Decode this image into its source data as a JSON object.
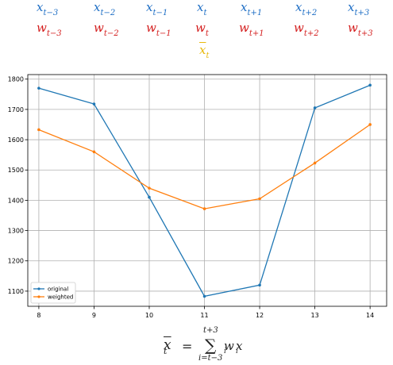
{
  "symbols": {
    "x": [
      {
        "base": "x",
        "sub": "t−3"
      },
      {
        "base": "x",
        "sub": "t−2"
      },
      {
        "base": "x",
        "sub": "t−1"
      },
      {
        "base": "x",
        "sub": "t"
      },
      {
        "base": "x",
        "sub": "t+1"
      },
      {
        "base": "x",
        "sub": "t+2"
      },
      {
        "base": "x",
        "sub": "t+3"
      }
    ],
    "w": [
      {
        "base": "w",
        "sub": "t−3"
      },
      {
        "base": "w",
        "sub": "t−2"
      },
      {
        "base": "w",
        "sub": "t−1"
      },
      {
        "base": "w",
        "sub": "t"
      },
      {
        "base": "w",
        "sub": "t+1"
      },
      {
        "base": "w",
        "sub": "t+2"
      },
      {
        "base": "w",
        "sub": "t+3"
      }
    ],
    "xbar": {
      "base": "x",
      "sub": "t"
    }
  },
  "colors": {
    "x": "#1f6fc5",
    "w": "#d42020",
    "xbar": "#e8b80b",
    "original": "#1f77b4",
    "weighted": "#ff7f0e"
  },
  "chart_data": {
    "type": "line",
    "x": [
      8,
      9,
      10,
      11,
      12,
      13,
      14
    ],
    "series": [
      {
        "name": "original",
        "values": [
          1770,
          1718,
          1410,
          1083,
          1120,
          1705,
          1780
        ]
      },
      {
        "name": "weighted",
        "values": [
          1633,
          1560,
          1440,
          1372,
          1405,
          1523,
          1650
        ]
      }
    ],
    "xticks": [
      "8",
      "9",
      "10",
      "11",
      "12",
      "13",
      "14"
    ],
    "yticks": [
      "1100",
      "1200",
      "1300",
      "1400",
      "1500",
      "1600",
      "1700",
      "1800"
    ],
    "xlim": [
      7.8,
      14.3
    ],
    "ylim": [
      1050,
      1815
    ],
    "grid": true,
    "legend_position": "lower-left"
  },
  "formula": {
    "lhs_base": "x",
    "lhs_sub": "t",
    "equals": "=",
    "sum_symbol": "∑",
    "sum_upper": "t+3",
    "sum_lower": "i=t−3",
    "term_w": "w",
    "term_w_sub": "i",
    "term_x": "x",
    "term_x_sub": "i"
  }
}
